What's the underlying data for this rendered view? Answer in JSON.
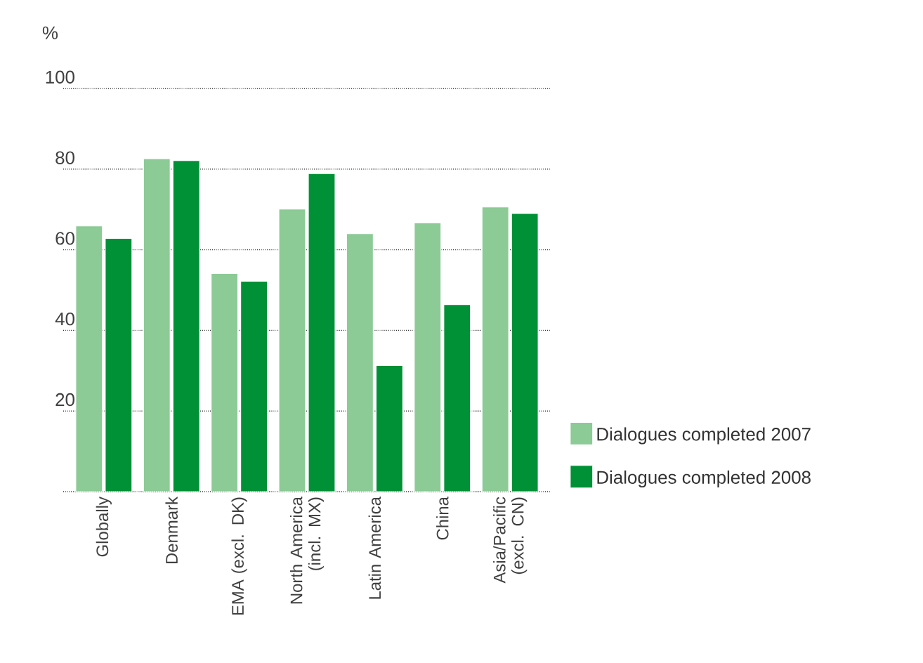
{
  "chart_data": {
    "type": "bar",
    "ylabel": "%",
    "categories": [
      "Globally",
      "Denmark",
      "EMA (excl. DK)",
      "North America (incl. MX)",
      "Latin America",
      "China",
      "Asia/Pacific (excl. CN)"
    ],
    "series": [
      {
        "name": "Dialogues completed 2007",
        "color": "#8cca96",
        "values": [
          65.9,
          82.6,
          54.1,
          70.1,
          64.0,
          66.7,
          70.6
        ]
      },
      {
        "name": "Dialogues completed 2008",
        "color": "#009036",
        "values": [
          62.8,
          82.1,
          52.2,
          78.9,
          31.3,
          46.4,
          69.0
        ]
      }
    ],
    "ylim": [
      0,
      100
    ],
    "yticks": [
      {
        "value": 0,
        "label": null
      },
      20,
      40,
      60,
      80,
      100
    ],
    "grid": "y",
    "legend": "right"
  }
}
